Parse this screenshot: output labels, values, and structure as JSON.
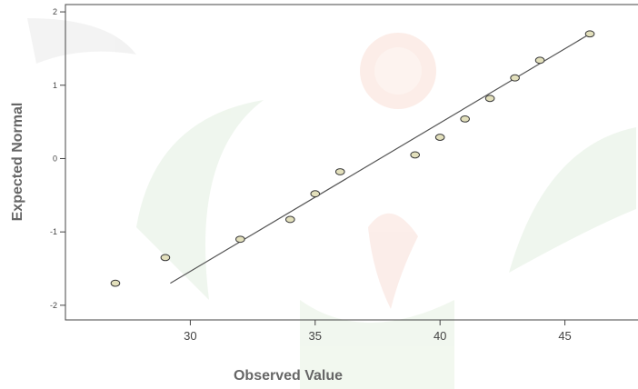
{
  "chart_data": {
    "type": "scatter",
    "xlabel": "Observed Value",
    "ylabel": "Expected Normal",
    "xlim": [
      25,
      48
    ],
    "ylim": [
      -2.2,
      2.1
    ],
    "x_ticks": [
      "30",
      "35",
      "40",
      "45"
    ],
    "y_ticks": [
      "2",
      "1",
      "0",
      "-1",
      "-2"
    ],
    "points": [
      {
        "x": 27,
        "y": -1.7
      },
      {
        "x": 29,
        "y": -1.35
      },
      {
        "x": 32,
        "y": -1.1
      },
      {
        "x": 34,
        "y": -0.83
      },
      {
        "x": 35,
        "y": -0.48
      },
      {
        "x": 36,
        "y": -0.18
      },
      {
        "x": 39,
        "y": 0.05
      },
      {
        "x": 40,
        "y": 0.29
      },
      {
        "x": 41,
        "y": 0.54
      },
      {
        "x": 42,
        "y": 0.82
      },
      {
        "x": 43,
        "y": 1.1
      },
      {
        "x": 44,
        "y": 1.34
      },
      {
        "x": 46,
        "y": 1.7
      }
    ],
    "reference_line": {
      "x": [
        29.2,
        46.0
      ],
      "y": [
        -1.7,
        1.7
      ]
    },
    "grid": false,
    "colors": {
      "marker_fill": "#e3e0bc",
      "marker_stroke": "#3a3a3a",
      "line": "#555555",
      "axes": "#444444"
    }
  }
}
